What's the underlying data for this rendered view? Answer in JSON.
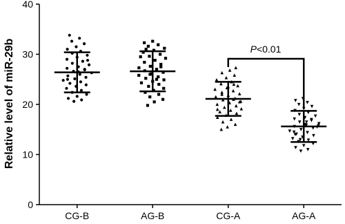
{
  "chart_data": {
    "type": "dot",
    "y_label": "Relative level of miR-29b",
    "categories": [
      "CG-B",
      "AG-B",
      "CG-A",
      "AG-A"
    ],
    "ylim": [
      0,
      40
    ],
    "yticks": [
      0,
      10,
      20,
      30,
      40
    ],
    "color": "#000000",
    "annotation": [
      "P",
      "<0.01"
    ],
    "groups": [
      {
        "marker": "circle",
        "mean": 26.4,
        "sd": 4.0,
        "values": [
          33.8,
          33.2,
          32.6,
          32.1,
          31.5,
          31.0,
          30.6,
          30.2,
          29.8,
          29.4,
          29.0,
          28.6,
          28.2,
          27.9,
          27.5,
          27.2,
          26.9,
          26.6,
          26.3,
          26.0,
          25.7,
          25.4,
          25.1,
          24.8,
          24.5,
          24.2,
          23.9,
          23.6,
          23.2,
          22.8,
          22.4,
          22.0,
          21.6,
          21.2,
          20.9,
          20.6,
          28.8,
          26.5,
          25.0,
          27.0
        ]
      },
      {
        "marker": "square",
        "mean": 26.6,
        "sd": 4.0,
        "values": [
          32.6,
          32.3,
          31.9,
          31.6,
          31.2,
          30.8,
          30.4,
          30.0,
          29.6,
          29.2,
          28.8,
          28.4,
          28.0,
          27.6,
          27.3,
          27.0,
          26.7,
          26.4,
          26.1,
          25.8,
          25.5,
          25.2,
          24.9,
          24.6,
          24.3,
          24.0,
          23.6,
          23.2,
          22.8,
          22.4,
          22.0,
          21.5,
          21.0,
          20.5,
          19.8,
          27.5,
          26.0,
          29.5,
          25.0,
          31.0
        ]
      },
      {
        "marker": "triangle-up",
        "mean": 21.1,
        "sd": 3.4,
        "values": [
          27.3,
          26.8,
          26.3,
          25.8,
          25.3,
          24.9,
          24.5,
          24.1,
          23.7,
          23.3,
          23.0,
          22.7,
          22.4,
          22.1,
          21.8,
          21.5,
          21.2,
          20.9,
          20.6,
          20.3,
          20.0,
          19.7,
          19.4,
          19.1,
          18.8,
          18.5,
          18.2,
          17.8,
          17.4,
          17.0,
          16.5,
          16.0,
          15.5,
          15.0,
          21.0,
          22.0,
          20.5,
          23.5,
          19.0,
          24.0
        ]
      },
      {
        "marker": "triangle-down",
        "mean": 15.6,
        "sd": 3.1,
        "values": [
          21.2,
          20.8,
          20.4,
          20.0,
          19.6,
          19.2,
          18.8,
          18.4,
          18.0,
          17.7,
          17.4,
          17.1,
          16.8,
          16.5,
          16.2,
          15.9,
          15.6,
          15.3,
          15.0,
          14.7,
          14.4,
          14.1,
          13.8,
          13.5,
          13.2,
          12.9,
          12.6,
          12.2,
          11.8,
          11.4,
          11.0,
          10.7,
          15.5,
          16.0,
          14.5,
          17.0,
          13.0,
          15.8,
          16.5,
          14.0
        ]
      }
    ]
  }
}
